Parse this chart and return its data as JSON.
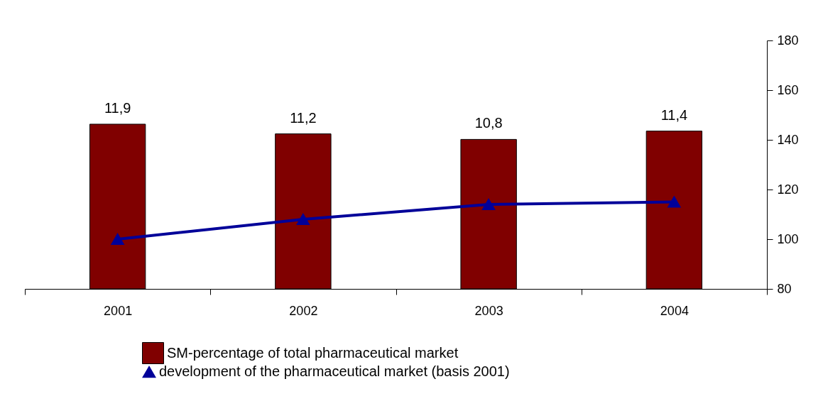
{
  "chart_data": {
    "type": "bar",
    "categories": [
      "2001",
      "2002",
      "2003",
      "2004"
    ],
    "series": [
      {
        "name": "SM-percentage of total pharmaceutical market",
        "color": "#800000",
        "values": [
          11.9,
          11.2,
          10.8,
          11.4
        ],
        "value_labels": [
          "11,9",
          "11,2",
          "10,8",
          "11,4"
        ]
      },
      {
        "name": "development of the pharmaceutical market (basis 2001)",
        "type": "line",
        "axis": "y2",
        "color": "#000099",
        "values": [
          100,
          108,
          114,
          115
        ]
      }
    ],
    "y2lim": [
      80,
      180
    ],
    "y2ticks": [
      80,
      100,
      120,
      140,
      160,
      180
    ],
    "marker": "triangle",
    "legend": "bottom"
  }
}
